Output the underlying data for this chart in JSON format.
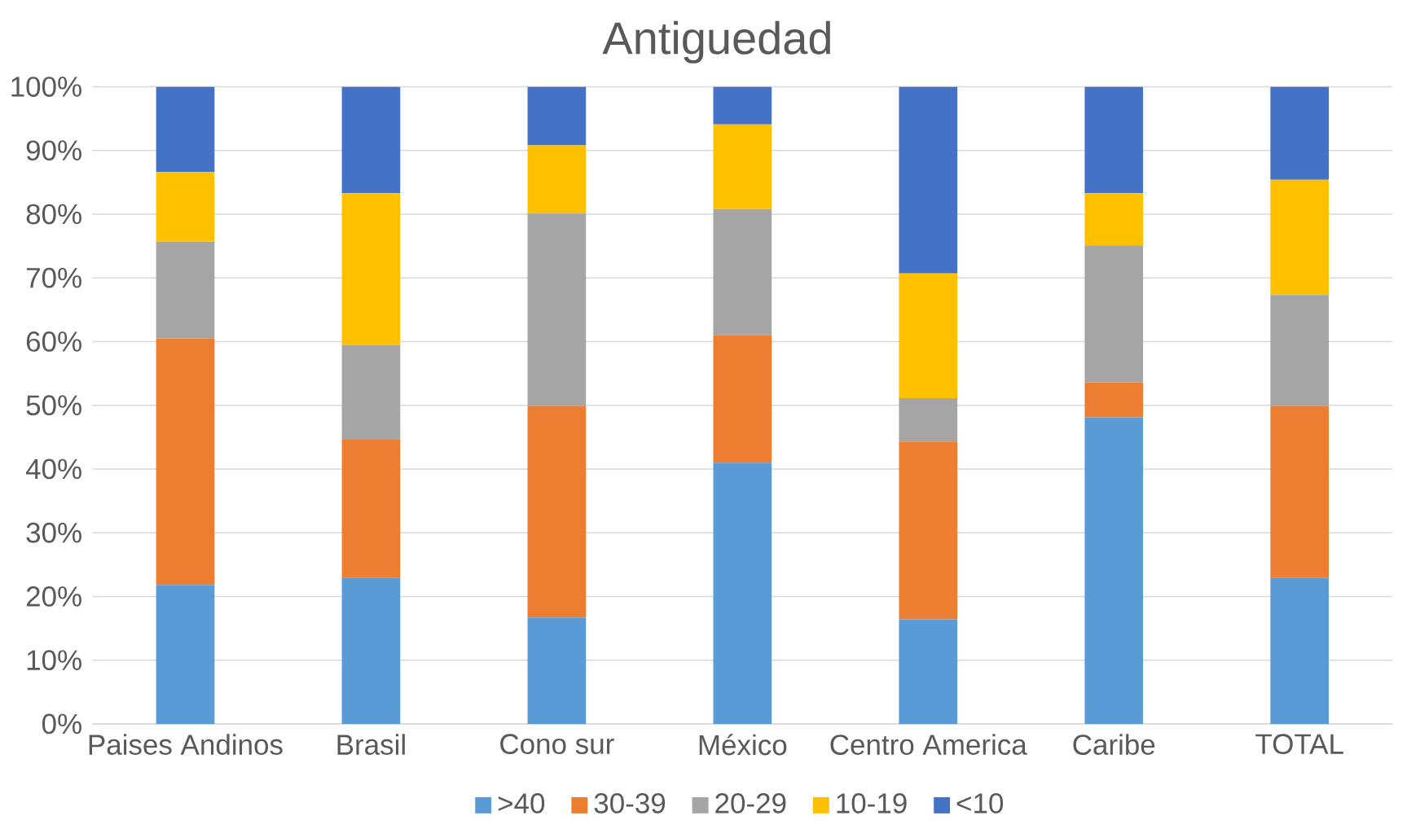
{
  "chart_data": {
    "type": "bar",
    "title": "Antiguedad",
    "stacked": true,
    "categories": [
      "Paises Andinos",
      "Brasil",
      "Cono sur",
      "México",
      "Centro America",
      "Caribe",
      "TOTAL"
    ],
    "series": [
      {
        "name": ">40",
        "color": "#5b9bd5",
        "values": [
          21.8,
          22.9,
          16.7,
          41.0,
          16.4,
          48.1,
          22.9
        ]
      },
      {
        "name": "30-39",
        "color": "#ed7d31",
        "values": [
          38.7,
          21.7,
          33.2,
          20.0,
          27.9,
          5.5,
          27.0
        ]
      },
      {
        "name": "20-29",
        "color": "#a5a5a5",
        "values": [
          15.2,
          14.9,
          30.2,
          19.8,
          6.8,
          21.5,
          17.4
        ]
      },
      {
        "name": "10-19",
        "color": "#ffc000",
        "values": [
          10.9,
          23.8,
          10.7,
          13.3,
          19.6,
          8.2,
          18.1
        ]
      },
      {
        "name": "<10",
        "color": "#4472c4",
        "values": [
          13.4,
          16.7,
          9.2,
          5.9,
          29.3,
          16.7,
          14.6
        ]
      }
    ],
    "ylim": [
      0,
      100
    ],
    "yticks": [
      {
        "value": 0,
        "label": "0%"
      },
      {
        "value": 10,
        "label": "10%"
      },
      {
        "value": 20,
        "label": "20%"
      },
      {
        "value": 30,
        "label": "30%"
      },
      {
        "value": 40,
        "label": "40%"
      },
      {
        "value": 50,
        "label": "50%"
      },
      {
        "value": 60,
        "label": "60%"
      },
      {
        "value": 70,
        "label": "70%"
      },
      {
        "value": 80,
        "label": "80%"
      },
      {
        "value": 90,
        "label": "90%"
      },
      {
        "value": 100,
        "label": "100%"
      }
    ],
    "grid": "y",
    "legend": "bottom"
  }
}
